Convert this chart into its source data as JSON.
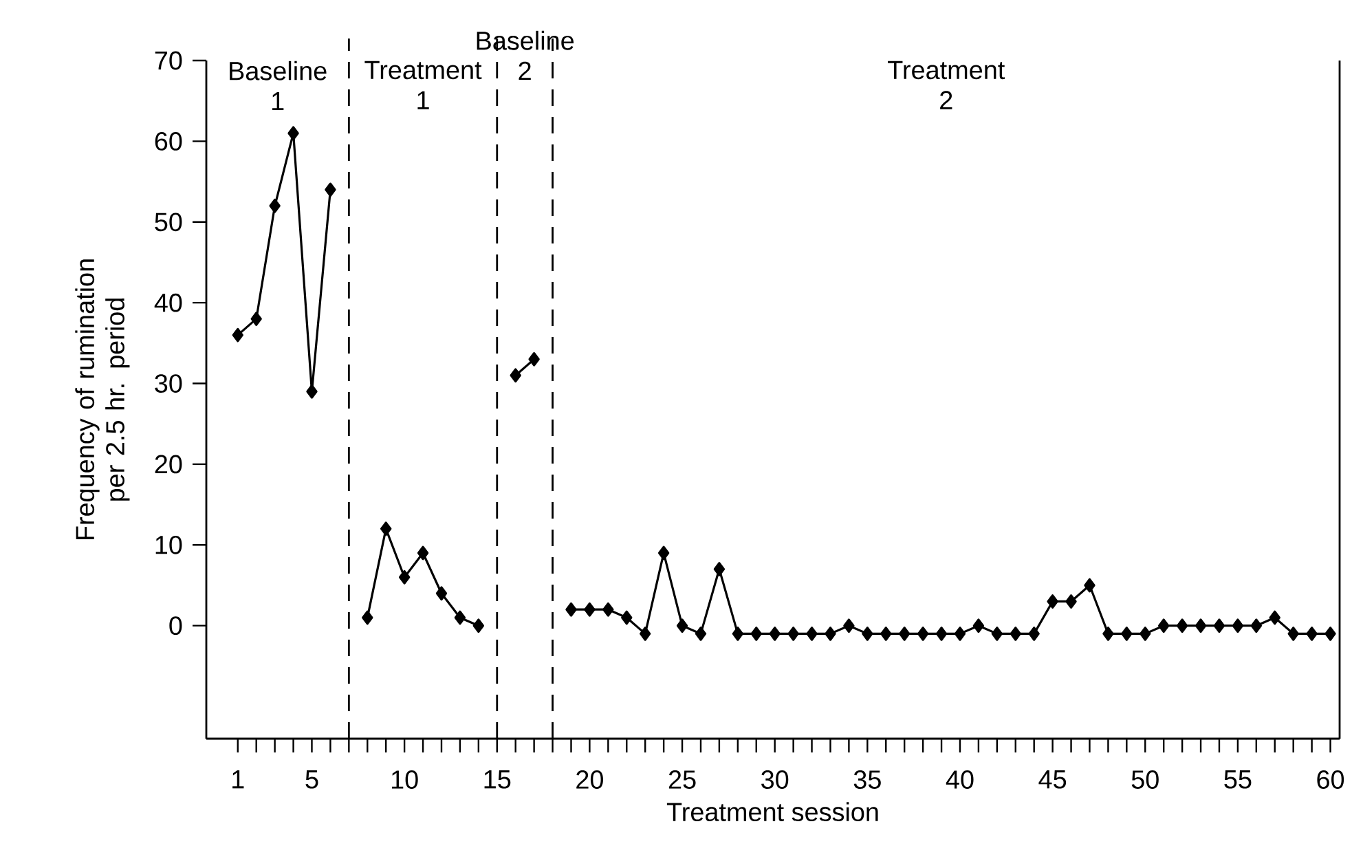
{
  "chart_data": {
    "type": "line",
    "xlabel": "Treatment session",
    "ylabel": "Frequency of rumination per 2.5 hr. period",
    "x": [
      1,
      2,
      3,
      4,
      5,
      6,
      7,
      8,
      9,
      10,
      11,
      12,
      13,
      14,
      15,
      16,
      17,
      18,
      19,
      20,
      21,
      22,
      23,
      24,
      25,
      26,
      27,
      28,
      29,
      30,
      31,
      32,
      33,
      34,
      35,
      36,
      37,
      38,
      39,
      40,
      41,
      42,
      43,
      44,
      45,
      46,
      47,
      48,
      49,
      50,
      51,
      52,
      53,
      54,
      55,
      56,
      57,
      58,
      59,
      60
    ],
    "series": [
      {
        "color": "#000000",
        "values": [
          36,
          38,
          52,
          61,
          29,
          54,
          null,
          1,
          12,
          6,
          9,
          4,
          1,
          0,
          null,
          31,
          33,
          null,
          2,
          2,
          2,
          1,
          -1,
          9,
          0,
          -1,
          7,
          -1,
          -1,
          -1,
          -1,
          -1,
          -1,
          0,
          -1,
          -1,
          -1,
          -1,
          -1,
          -1,
          0,
          -1,
          -1,
          -1,
          3,
          3,
          5,
          -1,
          -1,
          -1,
          0,
          0,
          0,
          0,
          0,
          0,
          1,
          -1,
          -1,
          -1
        ]
      }
    ],
    "marker": "diamond",
    "line_style": "solid",
    "xlim": [
      -0.7,
      60.5
    ],
    "ylim": [
      -14,
      70
    ],
    "yticks": [
      0,
      10,
      20,
      30,
      40,
      50,
      60,
      70
    ],
    "xticks": [
      1,
      {
        "value": 2,
        "label": null
      },
      {
        "value": 3,
        "label": null
      },
      {
        "value": 4,
        "label": null
      },
      5,
      {
        "value": 6,
        "label": null
      },
      {
        "value": 7,
        "label": null
      },
      {
        "value": 8,
        "label": null
      },
      {
        "value": 9,
        "label": null
      },
      10,
      {
        "value": 11,
        "label": null
      },
      {
        "value": 12,
        "label": null
      },
      {
        "value": 13,
        "label": null
      },
      {
        "value": 14,
        "label": null
      },
      15,
      {
        "value": 16,
        "label": null
      },
      {
        "value": 17,
        "label": null
      },
      {
        "value": 18,
        "label": null
      },
      {
        "value": 19,
        "label": null
      },
      20,
      {
        "value": 21,
        "label": null
      },
      {
        "value": 22,
        "label": null
      },
      {
        "value": 23,
        "label": null
      },
      {
        "value": 24,
        "label": null
      },
      25,
      {
        "value": 26,
        "label": null
      },
      {
        "value": 27,
        "label": null
      },
      {
        "value": 28,
        "label": null
      },
      {
        "value": 29,
        "label": null
      },
      30,
      {
        "value": 31,
        "label": null
      },
      {
        "value": 32,
        "label": null
      },
      {
        "value": 33,
        "label": null
      },
      {
        "value": 34,
        "label": null
      },
      35,
      {
        "value": 36,
        "label": null
      },
      {
        "value": 37,
        "label": null
      },
      {
        "value": 38,
        "label": null
      },
      {
        "value": 39,
        "label": null
      },
      40,
      {
        "value": 41,
        "label": null
      },
      {
        "value": 42,
        "label": null
      },
      {
        "value": 43,
        "label": null
      },
      {
        "value": 44,
        "label": null
      },
      45,
      {
        "value": 46,
        "label": null
      },
      {
        "value": 47,
        "label": null
      },
      {
        "value": 48,
        "label": null
      },
      {
        "value": 49,
        "label": null
      },
      50,
      {
        "value": 51,
        "label": null
      },
      {
        "value": 52,
        "label": null
      },
      {
        "value": 53,
        "label": null
      },
      {
        "value": 54,
        "label": null
      },
      55,
      {
        "value": 56,
        "label": null
      },
      {
        "value": 57,
        "label": null
      },
      {
        "value": 58,
        "label": null
      },
      {
        "value": 59,
        "label": null
      },
      60
    ],
    "ref_lines": [
      {
        "axis": "x",
        "value": 7,
        "line_style": "dashed"
      },
      {
        "axis": "x",
        "value": 15,
        "line_style": "dashed"
      },
      {
        "axis": "x",
        "value": 18,
        "line_style": "dashed"
      }
    ],
    "annotations": [
      "Baseline 1",
      "Treatment 1",
      "Baseline 2",
      "Treatment 2"
    ]
  }
}
